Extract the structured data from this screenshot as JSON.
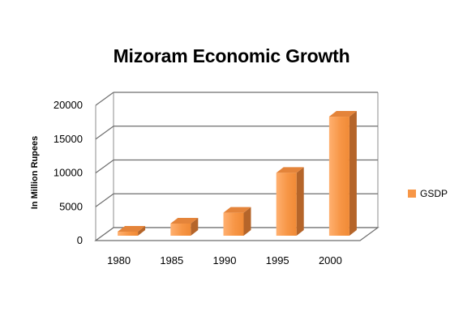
{
  "chart_data": {
    "type": "bar",
    "title": "Mizoram Economic Growth",
    "xlabel": "",
    "ylabel": "In Million  Rupees",
    "categories": [
      "1980",
      "1985",
      "1990",
      "1995",
      "2000"
    ],
    "series": [
      {
        "name": "GSDP",
        "values": [
          600,
          1800,
          3400,
          9300,
          17600
        ],
        "color": "#F79646"
      }
    ],
    "ylim": [
      0,
      20000
    ],
    "yticks": [
      0,
      5000,
      10000,
      15000,
      20000
    ],
    "grid": true,
    "legend": "right",
    "style": "3d-column"
  }
}
